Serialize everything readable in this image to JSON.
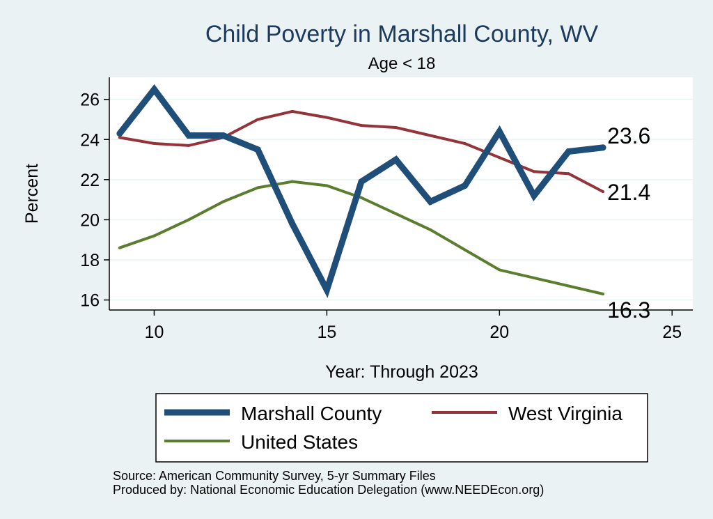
{
  "chart_data": {
    "type": "line",
    "title": "Child Poverty in Marshall County, WV",
    "subtitle": "Age < 18",
    "xlabel": "Year: Through 2023",
    "ylabel": "Percent",
    "xlim": [
      8.7,
      25.6
    ],
    "ylim": [
      15.5,
      27.1
    ],
    "xticks": [
      10,
      15,
      20,
      25
    ],
    "yticks": [
      16,
      18,
      20,
      22,
      24,
      26
    ],
    "grid": true,
    "legend_position": "bottom",
    "x": [
      9,
      10,
      11,
      12,
      13,
      14,
      15,
      16,
      17,
      18,
      19,
      20,
      21,
      22,
      23
    ],
    "series": [
      {
        "name": "Marshall County",
        "color": "#1f4e79",
        "width": 9,
        "values": [
          24.3,
          26.5,
          24.2,
          24.2,
          23.5,
          19.8,
          16.5,
          21.9,
          23.0,
          20.9,
          21.7,
          24.4,
          21.2,
          23.4,
          23.6
        ],
        "end_label": "23.6"
      },
      {
        "name": "West Virginia",
        "color": "#93343a",
        "width": 4,
        "values": [
          24.1,
          23.8,
          23.7,
          24.1,
          25.0,
          25.4,
          25.1,
          24.7,
          24.6,
          24.2,
          23.8,
          23.1,
          22.4,
          22.3,
          21.4
        ],
        "end_label": "21.4"
      },
      {
        "name": "United States",
        "color": "#5b7d2e",
        "width": 4,
        "values": [
          18.6,
          19.2,
          20.0,
          20.9,
          21.6,
          21.9,
          21.7,
          21.1,
          20.3,
          19.5,
          18.5,
          17.5,
          17.1,
          16.7,
          16.3
        ],
        "end_label": "16.3"
      }
    ],
    "notes": [
      "Source: American Community Survey, 5-yr Summary Files",
      "Produced by: National Economic Education Delegation (www.NEEDEcon.org)"
    ]
  }
}
